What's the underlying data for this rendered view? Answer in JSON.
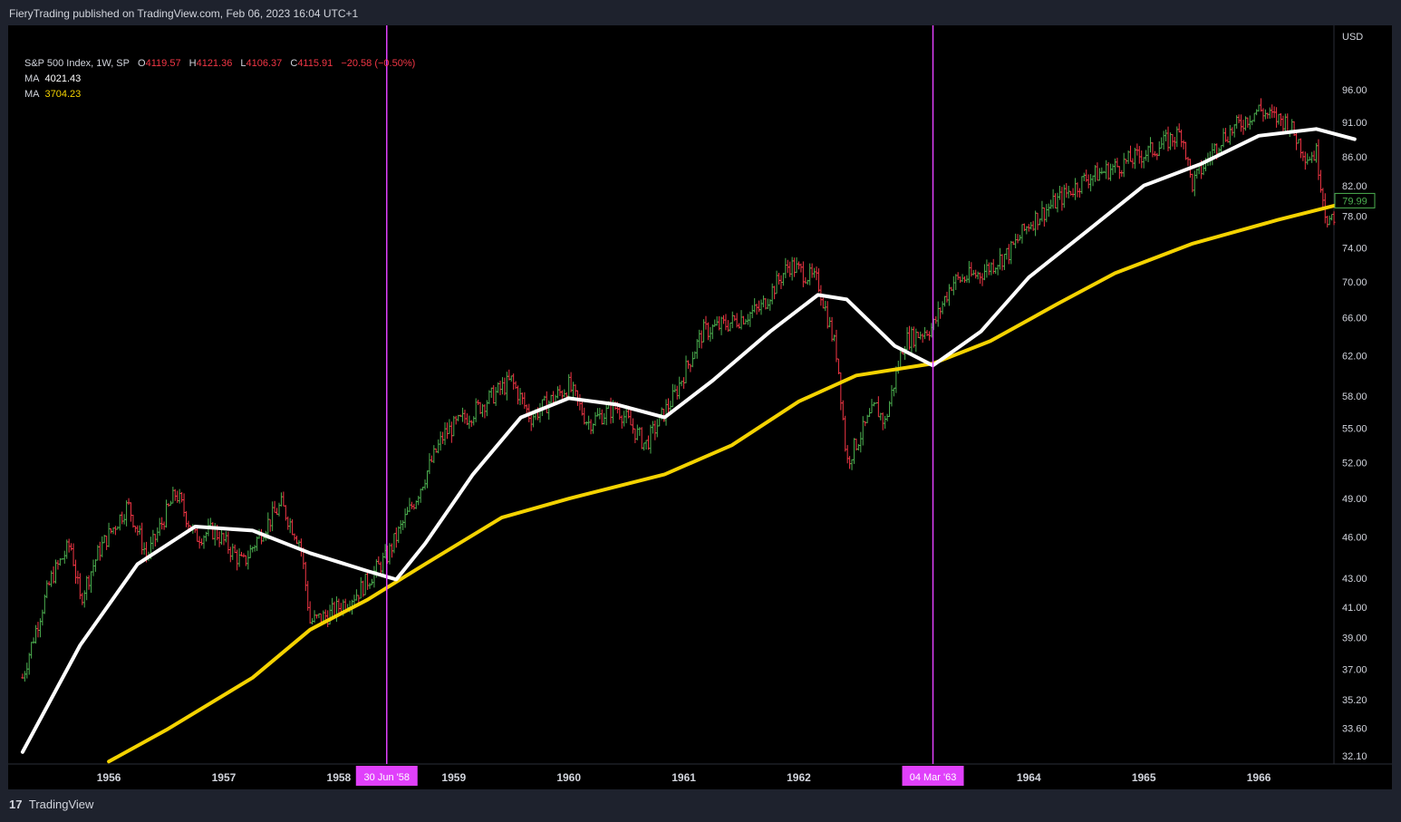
{
  "header": {
    "publisher_line": "FieryTrading published on TradingView.com, Feb 06, 2023 16:04 UTC+1"
  },
  "legend": {
    "symbol": "S&P 500 Index, 1W, SP",
    "o_label": "O",
    "o_value": "4119.57",
    "h_label": "H",
    "h_value": "4121.36",
    "l_label": "L",
    "l_value": "4106.37",
    "c_label": "C",
    "c_value": "4115.91",
    "change": "−20.58 (−0.50%)",
    "ma1_label": "MA",
    "ma1_value": "4021.43",
    "ma2_label": "MA",
    "ma2_value": "3704.23"
  },
  "footer": {
    "brand": "TradingView",
    "logo_glyph": "17"
  },
  "colors": {
    "background": "#000000",
    "frame": "#1e222d",
    "text": "#d1d4dc",
    "up": "#26a69a",
    "up_bright": "#4caf50",
    "down": "#f23645",
    "ma1": "#ffffff",
    "ma2": "#f5d300",
    "marker": "#e040fb",
    "price_tag": "#4caf50"
  },
  "chart_data": {
    "type": "ohlc",
    "currency": "USD",
    "y_ticks": [
      "96.00",
      "91.00",
      "86.00",
      "82.00",
      "78.00",
      "74.00",
      "70.00",
      "66.00",
      "62.00",
      "58.00",
      "55.00",
      "52.00",
      "49.00",
      "46.00",
      "43.00",
      "41.00",
      "39.00",
      "37.00",
      "35.20",
      "33.60",
      "32.10"
    ],
    "y_scale": "log",
    "x_ticks": [
      "1956",
      "1957",
      "1958",
      "1959",
      "1960",
      "1961",
      "1962",
      "1964",
      "1965",
      "1966"
    ],
    "markers": [
      {
        "date_label": "30 Jun '58",
        "date": "1958-06-30",
        "price_cross": 42.8
      },
      {
        "date_label": "04 Mar '63",
        "date": "1963-03-04",
        "price_cross": 61.2
      }
    ],
    "last_price_label": "79.99",
    "price_series": [
      [
        "1955-04",
        36.5
      ],
      [
        "1955-07",
        43.0
      ],
      [
        "1955-09",
        45.5
      ],
      [
        "1955-10",
        41.5
      ],
      [
        "1955-12",
        45.0
      ],
      [
        "1956-03",
        48.5
      ],
      [
        "1956-05",
        44.5
      ],
      [
        "1956-08",
        49.5
      ],
      [
        "1956-10",
        46.0
      ],
      [
        "1956-12",
        46.5
      ],
      [
        "1957-03",
        44.0
      ],
      [
        "1957-05",
        46.5
      ],
      [
        "1957-07",
        48.5
      ],
      [
        "1957-09",
        45.5
      ],
      [
        "1957-10",
        40.0
      ],
      [
        "1957-12",
        40.5
      ],
      [
        "1958-03",
        42.0
      ],
      [
        "1958-06",
        44.5
      ],
      [
        "1958-09",
        49.0
      ],
      [
        "1958-12",
        54.5
      ],
      [
        "1959-03",
        56.5
      ],
      [
        "1959-07",
        59.5
      ],
      [
        "1959-09",
        56.0
      ],
      [
        "1960-01",
        59.0
      ],
      [
        "1960-03",
        55.5
      ],
      [
        "1960-06",
        57.0
      ],
      [
        "1960-09",
        53.5
      ],
      [
        "1960-12",
        58.0
      ],
      [
        "1961-03",
        64.5
      ],
      [
        "1961-06",
        65.5
      ],
      [
        "1961-09",
        67.0
      ],
      [
        "1961-12",
        72.0
      ],
      [
        "1962-03",
        70.0
      ],
      [
        "1962-05",
        62.0
      ],
      [
        "1962-06",
        52.0
      ],
      [
        "1962-09",
        57.0
      ],
      [
        "1962-10",
        55.5
      ],
      [
        "1962-12",
        63.5
      ],
      [
        "1963-03",
        65.0
      ],
      [
        "1963-05",
        70.0
      ],
      [
        "1963-08",
        71.0
      ],
      [
        "1963-11",
        73.5
      ],
      [
        "1964-01",
        77.0
      ],
      [
        "1964-04",
        80.0
      ],
      [
        "1964-07",
        83.0
      ],
      [
        "1964-10",
        84.5
      ],
      [
        "1965-02",
        87.0
      ],
      [
        "1965-05",
        89.5
      ],
      [
        "1965-06",
        82.0
      ],
      [
        "1965-09",
        88.5
      ],
      [
        "1966-01",
        93.0
      ],
      [
        "1966-02",
        92.0
      ],
      [
        "1966-04",
        91.0
      ],
      [
        "1966-06",
        86.0
      ],
      [
        "1966-07",
        86.5
      ],
      [
        "1966-08",
        78.0
      ],
      [
        "1966-09",
        76.5
      ]
    ],
    "ma1_series": [
      [
        "1955-04",
        32.3
      ],
      [
        "1955-10",
        38.5
      ],
      [
        "1956-04",
        44.0
      ],
      [
        "1956-10",
        46.8
      ],
      [
        "1957-04",
        46.5
      ],
      [
        "1957-10",
        44.8
      ],
      [
        "1958-04",
        43.5
      ],
      [
        "1958-07",
        42.9
      ],
      [
        "1958-10",
        45.5
      ],
      [
        "1959-03",
        51.0
      ],
      [
        "1959-08",
        56.0
      ],
      [
        "1960-01",
        57.8
      ],
      [
        "1960-06",
        57.2
      ],
      [
        "1960-11",
        56.0
      ],
      [
        "1961-04",
        59.5
      ],
      [
        "1961-10",
        64.5
      ],
      [
        "1962-03",
        68.5
      ],
      [
        "1962-06",
        68.0
      ],
      [
        "1962-11",
        63.0
      ],
      [
        "1963-03",
        61.0
      ],
      [
        "1963-08",
        64.5
      ],
      [
        "1964-01",
        70.5
      ],
      [
        "1964-07",
        76.0
      ],
      [
        "1965-01",
        82.0
      ],
      [
        "1965-07",
        85.0
      ],
      [
        "1966-01",
        89.0
      ],
      [
        "1966-07",
        90.0
      ],
      [
        "1966-11",
        88.5
      ]
    ],
    "ma2_series": [
      [
        "1956-01",
        31.8
      ],
      [
        "1956-07",
        33.5
      ],
      [
        "1957-04",
        36.5
      ],
      [
        "1957-10",
        39.5
      ],
      [
        "1958-04",
        41.5
      ],
      [
        "1958-10",
        44.0
      ],
      [
        "1959-06",
        47.5
      ],
      [
        "1960-01",
        49.0
      ],
      [
        "1960-11",
        51.0
      ],
      [
        "1961-06",
        53.5
      ],
      [
        "1962-01",
        57.5
      ],
      [
        "1962-07",
        60.0
      ],
      [
        "1963-03",
        61.2
      ],
      [
        "1963-09",
        63.5
      ],
      [
        "1964-04",
        67.5
      ],
      [
        "1964-10",
        71.0
      ],
      [
        "1965-06",
        74.5
      ],
      [
        "1966-03",
        77.5
      ],
      [
        "1966-11",
        80.0
      ]
    ]
  }
}
